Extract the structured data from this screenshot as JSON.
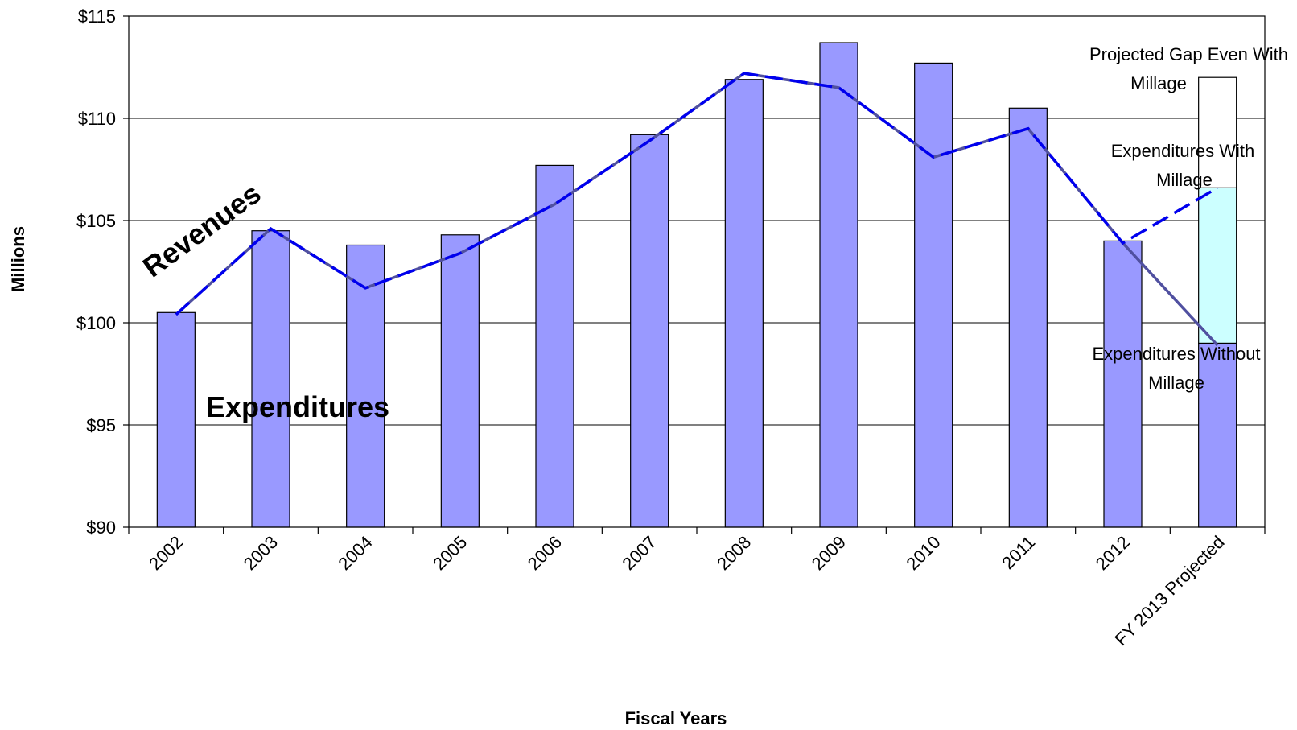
{
  "chart_data": {
    "type": "bar",
    "title": "",
    "xlabel": "Fiscal Years",
    "ylabel": "Millions",
    "ylim": [
      90,
      115
    ],
    "yticks": [
      90,
      95,
      100,
      105,
      110,
      115
    ],
    "ytick_labels": [
      "$90",
      "$95",
      "$100",
      "$105",
      "$110",
      "$115"
    ],
    "grid": true,
    "categories": [
      "2002",
      "2003",
      "2004",
      "2005",
      "2006",
      "2007",
      "2008",
      "2009",
      "2010",
      "2011",
      "2012",
      "FY 2013 Projected"
    ],
    "series": [
      {
        "name": "Expenditures",
        "kind": "bar",
        "values": [
          100.5,
          104.5,
          103.8,
          104.3,
          107.7,
          109.2,
          111.9,
          113.7,
          112.7,
          110.5,
          104.0,
          99.0
        ],
        "color": "#9999FF"
      },
      {
        "name": "Revenues",
        "kind": "line",
        "values": [
          100.4,
          104.6,
          101.7,
          103.4,
          105.8,
          108.9,
          112.2,
          111.5,
          108.1,
          109.5,
          103.9,
          98.9
        ],
        "color": "#5050A0"
      },
      {
        "name": "Revenues",
        "kind": "dashed-line",
        "values": [
          100.4,
          104.6,
          101.7,
          103.4,
          105.8,
          108.9,
          112.2,
          111.5,
          108.1,
          109.5,
          103.9,
          106.6
        ],
        "color": "#0000EE"
      }
    ],
    "projected_stack": {
      "category": "FY 2013 Projected",
      "segments": [
        {
          "name": "Expenditures Without Millage",
          "from": 90,
          "to": 99.0,
          "color": "#9999FF"
        },
        {
          "name": "Expenditures With Millage",
          "from": 99.0,
          "to": 106.6,
          "color": "#CCFFFF"
        },
        {
          "name": "Projected Gap Even With Millage",
          "from": 106.6,
          "to": 112.0,
          "color": "#FFFFFF"
        }
      ]
    },
    "labels": {
      "revenues": "Revenues",
      "expenditures": "Expenditures",
      "gap_line1": "Projected Gap Even With",
      "gap_line2": "Millage",
      "with_line1": "Expenditures With",
      "with_line2": "Millage",
      "without_line1": "Expenditures Without",
      "without_line2": "Millage"
    }
  }
}
